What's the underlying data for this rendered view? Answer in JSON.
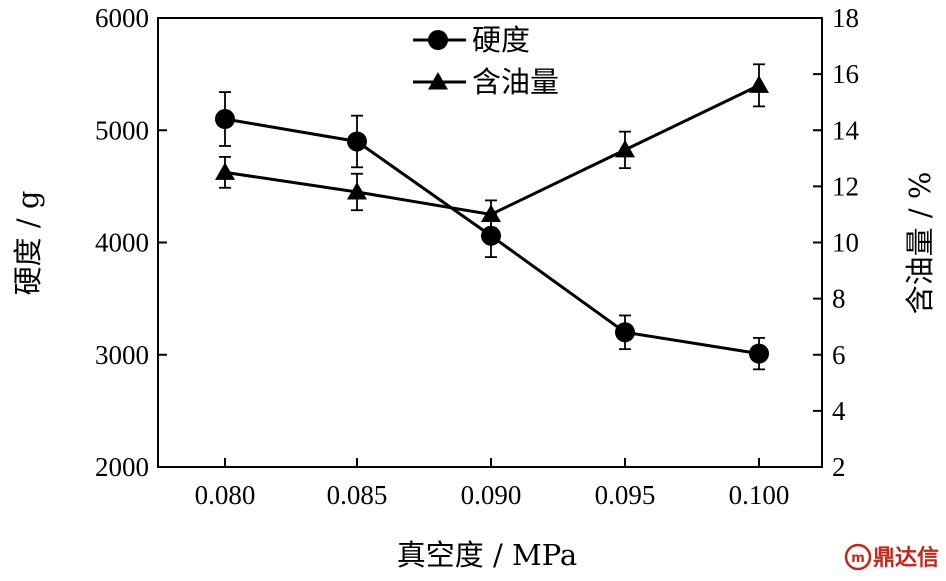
{
  "chart_data": {
    "type": "line",
    "x": [
      0.08,
      0.085,
      0.09,
      0.095,
      0.1
    ],
    "x_tick_labels": [
      "0.080",
      "0.085",
      "0.090",
      "0.095",
      "0.100"
    ],
    "xlabel": "真空度 / MPa",
    "ylabel_left": "硬度 / g",
    "ylabel_right": "含油量 / %",
    "y_left": {
      "lim": [
        2000,
        6000
      ],
      "ticks": [
        2000,
        3000,
        4000,
        5000,
        6000
      ]
    },
    "y_right": {
      "lim": [
        2,
        18
      ],
      "ticks": [
        2,
        4,
        6,
        8,
        10,
        12,
        14,
        16,
        18
      ]
    },
    "grid": false,
    "legend_position": "top-center",
    "series": [
      {
        "name": "硬度",
        "axis": "left",
        "marker": "circle",
        "values": [
          5100,
          4900,
          4060,
          3200,
          3010
        ],
        "errors": [
          240,
          230,
          190,
          150,
          140
        ]
      },
      {
        "name": "含油量",
        "axis": "right",
        "marker": "triangle",
        "values": [
          12.5,
          11.8,
          11.0,
          13.3,
          15.6
        ],
        "errors": [
          0.55,
          0.65,
          0.5,
          0.65,
          0.75
        ]
      }
    ]
  },
  "watermark": {
    "text": "鼎达信",
    "color": "#c0281e"
  }
}
